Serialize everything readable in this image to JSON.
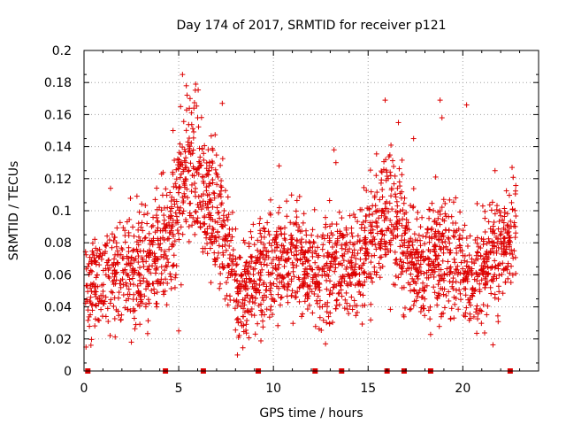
{
  "chart_data": {
    "type": "scatter",
    "title": "Day 174 of 2017, SRMTID for receiver p121",
    "xlabel": "GPS time / hours",
    "ylabel": "SRMTID / TECUs",
    "xlim": [
      0,
      24
    ],
    "ylim": [
      0,
      0.2
    ],
    "xticks": [
      0,
      5,
      10,
      15,
      20
    ],
    "yticks": [
      0,
      0.02,
      0.04,
      0.06,
      0.08,
      0.1,
      0.12,
      0.14,
      0.16,
      0.18,
      0.2
    ],
    "grid": true,
    "marker": "+",
    "color": "#dd0000",
    "trend": {
      "x": [
        0,
        0.5,
        1,
        1.5,
        2,
        2.5,
        3,
        3.5,
        4,
        4.5,
        5,
        5.5,
        6,
        6.5,
        7,
        7.5,
        8,
        8.5,
        9,
        9.5,
        10,
        10.5,
        11,
        11.5,
        12,
        12.5,
        13,
        13.5,
        14,
        14.5,
        15,
        15.5,
        16,
        16.5,
        17,
        17.5,
        18,
        18.5,
        19,
        19.5,
        20,
        20.5,
        21,
        21.5,
        22,
        22.5,
        22.8
      ],
      "y": [
        0.05,
        0.055,
        0.06,
        0.065,
        0.066,
        0.062,
        0.065,
        0.068,
        0.075,
        0.088,
        0.11,
        0.125,
        0.12,
        0.11,
        0.095,
        0.08,
        0.05,
        0.045,
        0.055,
        0.062,
        0.065,
        0.07,
        0.075,
        0.07,
        0.06,
        0.058,
        0.065,
        0.068,
        0.064,
        0.07,
        0.08,
        0.09,
        0.1,
        0.095,
        0.08,
        0.065,
        0.06,
        0.07,
        0.075,
        0.07,
        0.06,
        0.055,
        0.065,
        0.07,
        0.075,
        0.08,
        0.085
      ]
    },
    "spread": 0.018,
    "outliers": [
      {
        "x": 5.2,
        "y": 0.185
      },
      {
        "x": 5.4,
        "y": 0.178
      },
      {
        "x": 5.9,
        "y": 0.179
      },
      {
        "x": 5.6,
        "y": 0.17
      },
      {
        "x": 5.1,
        "y": 0.165
      },
      {
        "x": 5.8,
        "y": 0.164
      },
      {
        "x": 4.7,
        "y": 0.15
      },
      {
        "x": 6.0,
        "y": 0.158
      },
      {
        "x": 7.3,
        "y": 0.167
      },
      {
        "x": 15.9,
        "y": 0.169
      },
      {
        "x": 18.8,
        "y": 0.169
      },
      {
        "x": 20.2,
        "y": 0.166
      },
      {
        "x": 18.9,
        "y": 0.158
      },
      {
        "x": 16.6,
        "y": 0.155
      },
      {
        "x": 17.4,
        "y": 0.145
      },
      {
        "x": 13.2,
        "y": 0.138
      },
      {
        "x": 13.3,
        "y": 0.13
      },
      {
        "x": 1.4,
        "y": 0.114
      },
      {
        "x": 2.5,
        "y": 0.018
      },
      {
        "x": 8.1,
        "y": 0.01
      },
      {
        "x": 5.0,
        "y": 0.025
      },
      {
        "x": 22.6,
        "y": 0.127
      },
      {
        "x": 21.7,
        "y": 0.125
      },
      {
        "x": 10.3,
        "y": 0.128
      }
    ],
    "event_markers_x": [
      0.2,
      4.3,
      6.3,
      9.2,
      12.2,
      13.6,
      16.0,
      16.9,
      18.3,
      22.5
    ]
  }
}
